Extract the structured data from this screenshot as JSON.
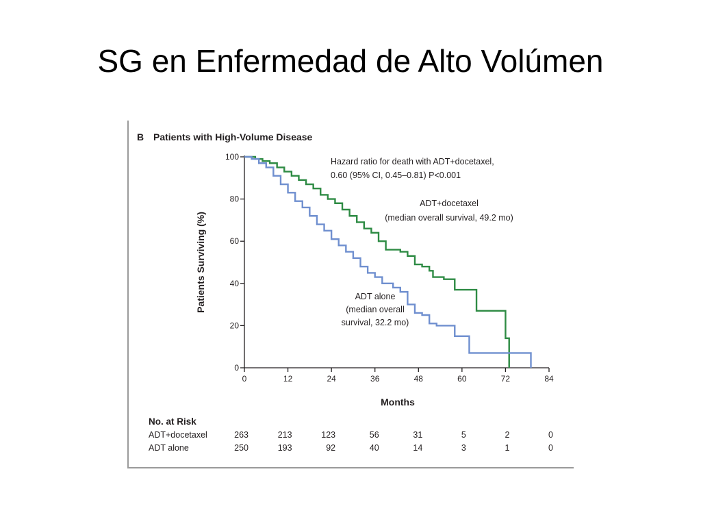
{
  "slide": {
    "title": "SG en Enfermedad de Alto Volúmen"
  },
  "chart_data": {
    "type": "line",
    "panel_label": "B",
    "title": "Patients with High-Volume Disease",
    "xlabel": "Months",
    "ylabel": "Patients Surviving (%)",
    "xlim": [
      0,
      84
    ],
    "ylim": [
      0,
      100
    ],
    "x_ticks": [
      "0",
      "12",
      "24",
      "36",
      "48",
      "60",
      "72",
      "84"
    ],
    "y_ticks": [
      "0",
      "20",
      "40",
      "60",
      "80",
      "100"
    ],
    "colors": {
      "ADT+docetaxel": "#2e8b44",
      "ADT alone": "#6f8fcf"
    },
    "series": [
      {
        "name": "ADT+docetaxel",
        "annotation": [
          "ADT+docetaxel",
          "(median overall survival, 49.2 mo)"
        ],
        "points": [
          [
            0,
            100
          ],
          [
            3,
            99
          ],
          [
            5,
            98
          ],
          [
            7,
            97
          ],
          [
            9,
            95
          ],
          [
            11,
            93
          ],
          [
            13,
            91
          ],
          [
            15,
            89
          ],
          [
            17,
            87
          ],
          [
            19,
            85
          ],
          [
            21,
            82
          ],
          [
            23,
            80
          ],
          [
            25,
            78
          ],
          [
            27,
            75
          ],
          [
            29,
            72
          ],
          [
            31,
            69
          ],
          [
            33,
            66
          ],
          [
            35,
            64
          ],
          [
            37,
            60
          ],
          [
            39,
            56
          ],
          [
            43,
            55
          ],
          [
            45,
            53
          ],
          [
            47,
            49
          ],
          [
            49,
            48
          ],
          [
            51,
            46
          ],
          [
            52,
            43
          ],
          [
            55,
            42
          ],
          [
            57,
            42
          ],
          [
            58,
            37
          ],
          [
            64,
            37
          ],
          [
            64,
            27
          ],
          [
            67,
            27
          ],
          [
            72,
            27
          ],
          [
            72,
            14
          ],
          [
            73,
            14
          ],
          [
            73,
            0
          ]
        ]
      },
      {
        "name": "ADT alone",
        "annotation": [
          "ADT alone",
          "(median overall",
          "survival, 32.2 mo)"
        ],
        "points": [
          [
            0,
            100
          ],
          [
            2,
            99
          ],
          [
            4,
            97
          ],
          [
            6,
            95
          ],
          [
            8,
            91
          ],
          [
            10,
            87
          ],
          [
            12,
            83
          ],
          [
            14,
            79
          ],
          [
            16,
            76
          ],
          [
            18,
            72
          ],
          [
            20,
            68
          ],
          [
            22,
            65
          ],
          [
            24,
            61
          ],
          [
            26,
            58
          ],
          [
            28,
            55
          ],
          [
            30,
            52
          ],
          [
            32,
            48
          ],
          [
            34,
            45
          ],
          [
            36,
            43
          ],
          [
            38,
            40
          ],
          [
            41,
            38
          ],
          [
            43,
            36
          ],
          [
            45,
            30
          ],
          [
            47,
            26
          ],
          [
            49,
            25
          ],
          [
            51,
            21
          ],
          [
            53,
            20
          ],
          [
            58,
            20
          ],
          [
            58,
            15
          ],
          [
            62,
            15
          ],
          [
            62,
            7
          ],
          [
            79,
            7
          ],
          [
            79,
            0
          ]
        ]
      }
    ],
    "annotation_hazard": [
      "Hazard ratio for death with ADT+docetaxel,",
      "0.60 (95% CI, 0.45–0.81)  P<0.001"
    ],
    "risk_table": {
      "title": "No. at Risk",
      "rows": [
        {
          "label": "ADT+docetaxel",
          "values": [
            "263",
            "213",
            "123",
            "56",
            "31",
            "5",
            "2",
            "0"
          ]
        },
        {
          "label": "ADT alone",
          "values": [
            "250",
            "193",
            "92",
            "40",
            "14",
            "3",
            "1",
            "0"
          ]
        }
      ]
    }
  }
}
